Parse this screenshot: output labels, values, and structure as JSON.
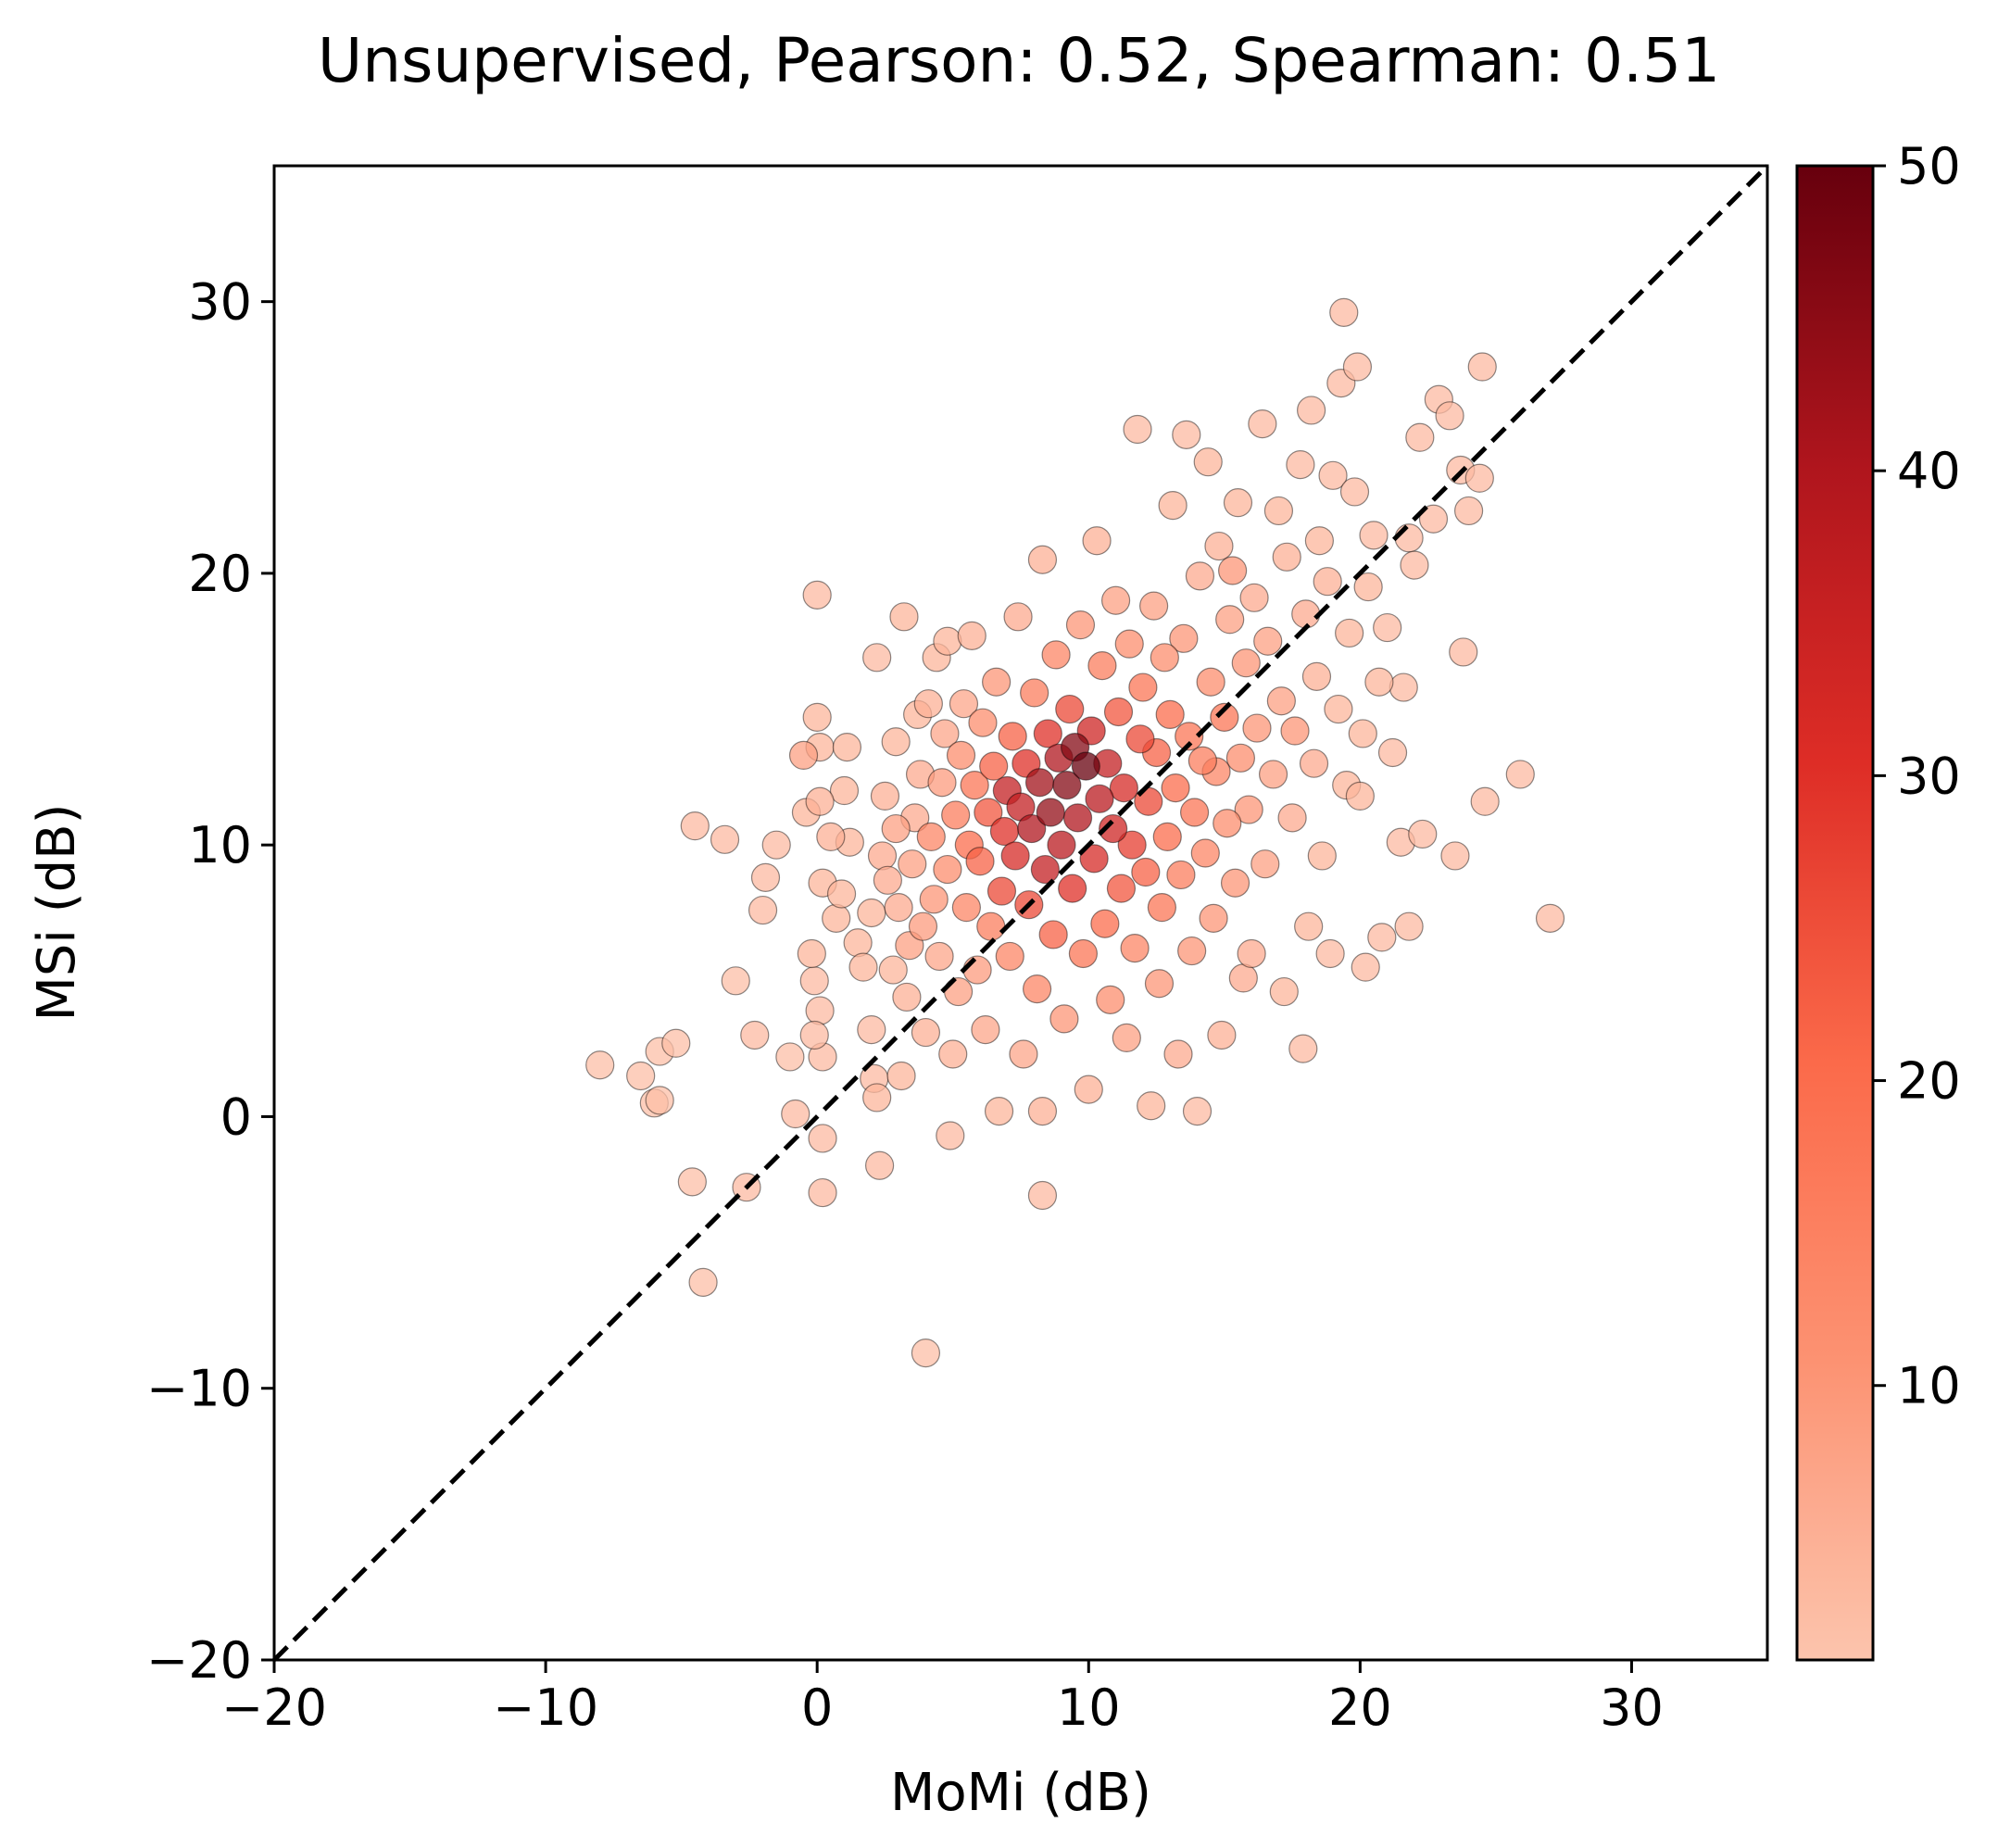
{
  "chart_data": {
    "type": "scatter",
    "title": "Unsupervised, Pearson: 0.52, Spearman: 0.51",
    "xlabel": "MoMi (dB)",
    "ylabel": "MSi (dB)",
    "xlim": [
      -20,
      35
    ],
    "ylim": [
      -20,
      35
    ],
    "xticks": [
      -20,
      -10,
      0,
      10,
      20,
      30
    ],
    "yticks": [
      -20,
      -10,
      0,
      10,
      20,
      30
    ],
    "xtick_labels": [
      "−20",
      "−10",
      "0",
      "10",
      "20",
      "30"
    ],
    "ytick_labels": [
      "−20",
      "−10",
      "0",
      "10",
      "20",
      "30"
    ],
    "reference_line": {
      "style": "dashed",
      "color": "#000000",
      "from": [
        -20,
        -20
      ],
      "to": [
        35,
        35
      ]
    },
    "colorbar": {
      "colormap": "Reds",
      "range": [
        1,
        50
      ],
      "ticks": [
        10,
        20,
        30,
        40,
        50
      ],
      "tick_labels": [
        "10",
        "20",
        "30",
        "40",
        "50"
      ]
    },
    "point_style": {
      "edgecolor": "#000000",
      "alpha": 0.75
    },
    "points": [
      [
        -8,
        1.9,
        2
      ],
      [
        -6.5,
        1.5,
        2
      ],
      [
        -6,
        0.5,
        2
      ],
      [
        -5.8,
        0.6,
        2
      ],
      [
        -5.8,
        2.4,
        2
      ],
      [
        -5.2,
        2.7,
        2
      ],
      [
        -4.6,
        -2.4,
        2
      ],
      [
        -4.5,
        10.7,
        3
      ],
      [
        -4.2,
        -6.1,
        2
      ],
      [
        -3.4,
        10.2,
        3
      ],
      [
        -3,
        5.0,
        2
      ],
      [
        -2.6,
        -2.6,
        3
      ],
      [
        -2.3,
        3.0,
        3
      ],
      [
        -2,
        7.6,
        3
      ],
      [
        -1.9,
        8.8,
        3
      ],
      [
        -1.5,
        10.0,
        3
      ],
      [
        -1,
        2.2,
        2
      ],
      [
        -0.8,
        0.1,
        3
      ],
      [
        -0.5,
        13.3,
        8
      ],
      [
        -0.4,
        11.2,
        4
      ],
      [
        -0.2,
        6.0,
        4
      ],
      [
        0,
        14.7,
        4
      ],
      [
        0,
        19.2,
        3
      ],
      [
        0.1,
        13.6,
        4
      ],
      [
        0.1,
        11.6,
        5
      ],
      [
        0.2,
        8.6,
        4
      ],
      [
        0.1,
        3.9,
        3
      ],
      [
        0.2,
        2.2,
        3
      ],
      [
        0.2,
        -0.8,
        3
      ],
      [
        0.2,
        -2.8,
        3
      ],
      [
        -0.1,
        3.0,
        3
      ],
      [
        -0.1,
        5.0,
        3
      ],
      [
        0.5,
        10.3,
        5
      ],
      [
        0.7,
        7.3,
        4
      ],
      [
        0.9,
        8.2,
        4
      ],
      [
        1.0,
        12.0,
        4
      ],
      [
        1.1,
        13.6,
        4
      ],
      [
        1.2,
        10.1,
        4
      ],
      [
        1.5,
        6.4,
        4
      ],
      [
        1.7,
        5.5,
        4
      ],
      [
        2.0,
        7.5,
        4
      ],
      [
        2.0,
        3.2,
        3
      ],
      [
        2.1,
        1.4,
        3
      ],
      [
        2.2,
        16.9,
        3
      ],
      [
        2.2,
        0.7,
        4
      ],
      [
        2.3,
        -1.8,
        3
      ],
      [
        2.4,
        9.6,
        6
      ],
      [
        2.5,
        11.8,
        5
      ],
      [
        2.6,
        8.7,
        6
      ],
      [
        2.8,
        5.4,
        4
      ],
      [
        2.9,
        10.6,
        8
      ],
      [
        2.9,
        13.8,
        4
      ],
      [
        3.0,
        7.7,
        6
      ],
      [
        3.1,
        1.5,
        4
      ],
      [
        3.2,
        18.4,
        4
      ],
      [
        3.3,
        4.4,
        5
      ],
      [
        3.4,
        6.3,
        8
      ],
      [
        3.5,
        9.3,
        8
      ],
      [
        3.6,
        11.0,
        6
      ],
      [
        3.7,
        14.8,
        4
      ],
      [
        3.8,
        12.6,
        6
      ],
      [
        3.9,
        7.0,
        9
      ],
      [
        4.0,
        3.1,
        5
      ],
      [
        4.0,
        -8.7,
        2
      ],
      [
        4.1,
        15.2,
        5
      ],
      [
        4.2,
        10.3,
        14
      ],
      [
        4.3,
        8.0,
        10
      ],
      [
        4.4,
        16.9,
        4
      ],
      [
        4.5,
        5.9,
        7
      ],
      [
        4.6,
        12.3,
        9
      ],
      [
        4.7,
        14.1,
        7
      ],
      [
        4.8,
        9.1,
        12
      ],
      [
        4.8,
        17.5,
        4
      ],
      [
        4.9,
        -0.7,
        3
      ],
      [
        5.0,
        2.3,
        5
      ],
      [
        5.1,
        11.1,
        16
      ],
      [
        5.2,
        4.6,
        8
      ],
      [
        5.3,
        13.3,
        12
      ],
      [
        5.4,
        15.2,
        7
      ],
      [
        5.5,
        7.7,
        14
      ],
      [
        5.6,
        10.0,
        20
      ],
      [
        5.7,
        17.7,
        5
      ],
      [
        5.8,
        12.2,
        18
      ],
      [
        5.9,
        5.4,
        9
      ],
      [
        6.0,
        9.4,
        22
      ],
      [
        6.1,
        14.5,
        12
      ],
      [
        6.2,
        3.2,
        7
      ],
      [
        6.3,
        11.2,
        24
      ],
      [
        6.4,
        7.0,
        16
      ],
      [
        6.5,
        12.9,
        22
      ],
      [
        6.6,
        16.0,
        10
      ],
      [
        6.7,
        0.2,
        4
      ],
      [
        6.8,
        8.3,
        26
      ],
      [
        6.9,
        10.5,
        30
      ],
      [
        7.0,
        12.0,
        36
      ],
      [
        7.1,
        5.9,
        14
      ],
      [
        7.2,
        14.0,
        22
      ],
      [
        7.3,
        9.6,
        32
      ],
      [
        7.4,
        18.4,
        6
      ],
      [
        7.5,
        11.4,
        36
      ],
      [
        7.6,
        2.3,
        7
      ],
      [
        7.7,
        13.0,
        30
      ],
      [
        7.8,
        7.8,
        26
      ],
      [
        7.9,
        10.6,
        40
      ],
      [
        8.0,
        15.6,
        16
      ],
      [
        8.1,
        4.7,
        14
      ],
      [
        8.2,
        12.3,
        42
      ],
      [
        8.3,
        0.2,
        5
      ],
      [
        8.3,
        -2.9,
        3
      ],
      [
        8.3,
        20.5,
        5
      ],
      [
        8.4,
        9.1,
        36
      ],
      [
        8.5,
        14.1,
        30
      ],
      [
        8.6,
        11.2,
        44
      ],
      [
        8.7,
        6.7,
        22
      ],
      [
        8.8,
        17.0,
        14
      ],
      [
        8.9,
        13.2,
        40
      ],
      [
        9.0,
        10.0,
        38
      ],
      [
        9.1,
        3.6,
        10
      ],
      [
        9.2,
        12.2,
        46
      ],
      [
        9.3,
        15.0,
        26
      ],
      [
        9.4,
        8.4,
        30
      ],
      [
        9.5,
        13.6,
        46
      ],
      [
        9.6,
        11.0,
        40
      ],
      [
        9.7,
        18.1,
        10
      ],
      [
        9.8,
        6.0,
        18
      ],
      [
        9.9,
        12.9,
        50
      ],
      [
        10.0,
        1.0,
        5
      ],
      [
        10.1,
        14.2,
        34
      ],
      [
        10.2,
        9.5,
        32
      ],
      [
        10.3,
        21.2,
        5
      ],
      [
        10.4,
        11.7,
        38
      ],
      [
        10.5,
        16.6,
        16
      ],
      [
        10.6,
        7.1,
        20
      ],
      [
        10.7,
        13.0,
        36
      ],
      [
        10.8,
        4.3,
        12
      ],
      [
        10.9,
        10.6,
        34
      ],
      [
        11.0,
        19.0,
        8
      ],
      [
        11.1,
        14.9,
        24
      ],
      [
        11.2,
        8.4,
        24
      ],
      [
        11.3,
        12.1,
        32
      ],
      [
        11.4,
        2.9,
        8
      ],
      [
        11.5,
        17.4,
        12
      ],
      [
        11.6,
        10.0,
        28
      ],
      [
        11.7,
        6.2,
        14
      ],
      [
        11.8,
        25.3,
        3
      ],
      [
        11.9,
        13.9,
        26
      ],
      [
        12.0,
        15.8,
        18
      ],
      [
        12.1,
        9.0,
        22
      ],
      [
        12.2,
        11.6,
        26
      ],
      [
        12.3,
        0.4,
        4
      ],
      [
        12.4,
        18.8,
        8
      ],
      [
        12.5,
        13.4,
        22
      ],
      [
        12.6,
        4.9,
        10
      ],
      [
        12.7,
        7.7,
        18
      ],
      [
        12.8,
        16.9,
        12
      ],
      [
        12.9,
        10.3,
        20
      ],
      [
        13.0,
        14.8,
        20
      ],
      [
        13.1,
        22.5,
        4
      ],
      [
        13.2,
        12.1,
        20
      ],
      [
        13.3,
        2.3,
        6
      ],
      [
        13.4,
        8.9,
        16
      ],
      [
        13.5,
        17.6,
        10
      ],
      [
        13.6,
        25.1,
        3
      ],
      [
        13.7,
        14.0,
        18
      ],
      [
        13.8,
        6.1,
        10
      ],
      [
        13.9,
        11.2,
        18
      ],
      [
        14.0,
        0.2,
        3
      ],
      [
        14.1,
        19.9,
        6
      ],
      [
        14.2,
        13.1,
        16
      ],
      [
        14.3,
        9.7,
        14
      ],
      [
        14.4,
        24.1,
        4
      ],
      [
        14.5,
        16.0,
        12
      ],
      [
        14.6,
        7.3,
        10
      ],
      [
        14.7,
        12.7,
        14
      ],
      [
        14.8,
        21.0,
        5
      ],
      [
        14.9,
        3.0,
        5
      ],
      [
        15.0,
        14.7,
        18
      ],
      [
        15.1,
        10.8,
        12
      ],
      [
        15.2,
        18.3,
        8
      ],
      [
        15.3,
        20.1,
        10
      ],
      [
        15.4,
        8.6,
        10
      ],
      [
        15.5,
        22.6,
        4
      ],
      [
        15.6,
        13.2,
        12
      ],
      [
        15.7,
        5.1,
        6
      ],
      [
        15.8,
        16.7,
        10
      ],
      [
        15.9,
        11.3,
        10
      ],
      [
        16.0,
        6.0,
        6
      ],
      [
        16.1,
        19.1,
        6
      ],
      [
        16.2,
        14.3,
        10
      ],
      [
        16.4,
        25.5,
        3
      ],
      [
        16.5,
        9.3,
        8
      ],
      [
        16.6,
        17.5,
        8
      ],
      [
        16.8,
        12.6,
        8
      ],
      [
        17.0,
        22.3,
        4
      ],
      [
        17.1,
        15.3,
        8
      ],
      [
        17.2,
        4.6,
        4
      ],
      [
        17.3,
        20.6,
        5
      ],
      [
        17.5,
        11.0,
        6
      ],
      [
        17.6,
        14.2,
        10
      ],
      [
        17.8,
        24.0,
        3
      ],
      [
        17.9,
        2.5,
        3
      ],
      [
        18.0,
        18.5,
        6
      ],
      [
        18.1,
        7.0,
        4
      ],
      [
        18.2,
        26.0,
        3
      ],
      [
        18.3,
        13.0,
        6
      ],
      [
        18.4,
        16.2,
        5
      ],
      [
        18.5,
        21.2,
        4
      ],
      [
        18.6,
        9.6,
        4
      ],
      [
        18.8,
        19.7,
        5
      ],
      [
        18.9,
        6.0,
        3
      ],
      [
        19.0,
        23.6,
        3
      ],
      [
        19.2,
        15.0,
        4
      ],
      [
        19.3,
        27.0,
        3
      ],
      [
        19.4,
        29.6,
        3
      ],
      [
        19.5,
        12.2,
        4
      ],
      [
        19.6,
        17.8,
        4
      ],
      [
        19.8,
        23.0,
        3
      ],
      [
        19.9,
        27.6,
        3
      ],
      [
        20.0,
        11.8,
        4
      ],
      [
        20.1,
        14.1,
        4
      ],
      [
        20.2,
        5.5,
        3
      ],
      [
        20.3,
        19.5,
        4
      ],
      [
        20.5,
        21.4,
        3
      ],
      [
        20.7,
        16.0,
        4
      ],
      [
        20.8,
        6.6,
        3
      ],
      [
        21.0,
        18.0,
        3
      ],
      [
        21.2,
        13.4,
        3
      ],
      [
        21.5,
        10.1,
        3
      ],
      [
        21.6,
        15.8,
        3
      ],
      [
        21.8,
        21.3,
        3
      ],
      [
        21.8,
        7.0,
        3
      ],
      [
        22.0,
        20.3,
        3
      ],
      [
        22.2,
        25.0,
        3
      ],
      [
        22.3,
        10.4,
        3
      ],
      [
        22.7,
        22.0,
        3
      ],
      [
        22.9,
        26.4,
        3
      ],
      [
        23.3,
        25.8,
        3
      ],
      [
        23.5,
        9.6,
        3
      ],
      [
        23.7,
        23.8,
        3
      ],
      [
        23.8,
        17.1,
        3
      ],
      [
        24.0,
        22.3,
        3
      ],
      [
        24.4,
        23.5,
        3
      ],
      [
        24.5,
        27.6,
        3
      ],
      [
        24.6,
        11.6,
        3
      ],
      [
        25.9,
        12.6,
        3
      ],
      [
        27.0,
        7.3,
        3
      ]
    ]
  }
}
